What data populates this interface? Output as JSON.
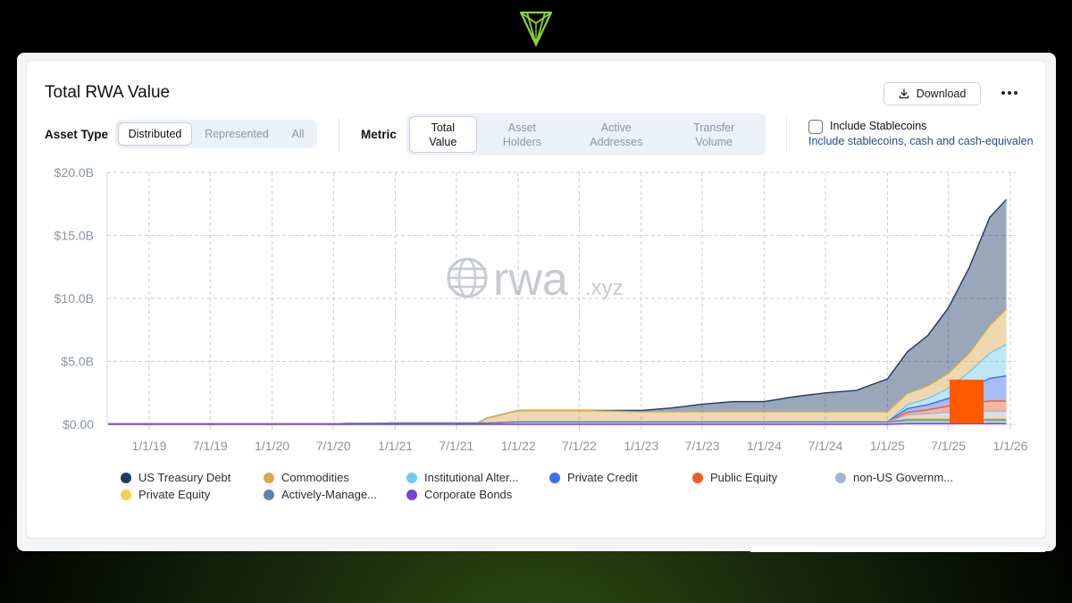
{
  "header": {
    "title": "Total RWA Value",
    "download_label": "Download",
    "more_icon": "more-horizontal-icon",
    "download_icon": "download-icon"
  },
  "asset_type": {
    "label": "Asset Type",
    "options": [
      "Distributed",
      "Represented",
      "All"
    ],
    "selected": "Distributed"
  },
  "metric": {
    "label": "Metric",
    "options": [
      {
        "line1": "Total",
        "line2": "Value"
      },
      {
        "line1": "Asset",
        "line2": "Holders"
      },
      {
        "line1": "Active",
        "line2": "Addresses"
      },
      {
        "line1": "Transfer",
        "line2": "Volume"
      }
    ],
    "selected": "Total Value"
  },
  "stablecoins": {
    "label": "Include Stablecoins",
    "description": "Include stablecoins, cash and cash-equivalen",
    "checked": false
  },
  "watermark": {
    "main": "rwa",
    "suffix": ".xyz"
  },
  "colors": {
    "accent_green": "#8fd62e",
    "background": "#000000",
    "highlight_orange": "#ff5a00"
  },
  "chart_data": {
    "type": "area",
    "stacked": true,
    "ylim": [
      0,
      20
    ],
    "y_unit": "B USD",
    "y_ticks": [
      "$0.00",
      "$5.0B",
      "$10.0B",
      "$15.0B",
      "$20.0B"
    ],
    "x_ticks": [
      "1/1/19",
      "7/1/19",
      "1/1/20",
      "7/1/20",
      "1/1/21",
      "7/1/21",
      "1/1/22",
      "7/1/22",
      "1/1/23",
      "7/1/23",
      "1/1/24",
      "7/1/24",
      "1/1/25",
      "7/1/25",
      "1/1/26"
    ],
    "grid": true,
    "legend_position": "bottom",
    "x": [
      "2018-09-01",
      "2019-01-01",
      "2019-07-01",
      "2020-01-01",
      "2020-07-01",
      "2021-01-01",
      "2021-07-01",
      "2021-09-01",
      "2021-10-01",
      "2022-01-01",
      "2022-07-01",
      "2023-01-01",
      "2023-04-01",
      "2023-07-01",
      "2023-10-01",
      "2024-01-01",
      "2024-04-01",
      "2024-07-01",
      "2024-10-01",
      "2025-01-01",
      "2025-03-01",
      "2025-05-01",
      "2025-07-01",
      "2025-09-01",
      "2025-11-01",
      "2025-12-20"
    ],
    "series": [
      {
        "name": "US Treasury Debt",
        "color": "#1f3a64",
        "values": [
          0,
          0,
          0,
          0,
          0,
          0,
          0,
          0,
          0,
          0,
          0,
          0.1,
          0.3,
          0.6,
          0.8,
          0.8,
          1.2,
          1.5,
          1.7,
          2.6,
          3.3,
          4.0,
          5.2,
          6.8,
          8.6,
          8.7
        ]
      },
      {
        "name": "Commodities",
        "color": "#d9a94d",
        "values": [
          0,
          0,
          0,
          0,
          0,
          0,
          0,
          0,
          0.4,
          0.9,
          0.9,
          0.8,
          0.8,
          0.8,
          0.8,
          0.8,
          0.8,
          0.8,
          0.8,
          0.8,
          0.9,
          1.0,
          1.2,
          1.5,
          2.2,
          2.8
        ]
      },
      {
        "name": "Institutional Alternative Funds",
        "color": "#6ecaea",
        "values": [
          0,
          0,
          0,
          0,
          0,
          0,
          0,
          0,
          0,
          0,
          0,
          0,
          0,
          0,
          0,
          0,
          0,
          0,
          0,
          0,
          0.3,
          0.5,
          0.8,
          1.3,
          2.0,
          2.5
        ]
      },
      {
        "name": "Private Credit",
        "color": "#3b6df0",
        "values": [
          0,
          0,
          0,
          0,
          0,
          0,
          0,
          0,
          0,
          0,
          0,
          0,
          0,
          0,
          0,
          0,
          0,
          0,
          0,
          0,
          0.3,
          0.4,
          0.6,
          1.2,
          1.8,
          2.0
        ]
      },
      {
        "name": "Public Equity",
        "color": "#f05a28",
        "values": [
          0,
          0,
          0,
          0,
          0,
          0,
          0,
          0,
          0,
          0,
          0,
          0,
          0,
          0,
          0,
          0,
          0,
          0,
          0,
          0,
          0.2,
          0.3,
          0.5,
          0.6,
          0.8,
          0.8
        ]
      },
      {
        "name": "non-US Government Debt",
        "color": "#a7b4cf",
        "values": [
          0,
          0,
          0,
          0,
          0,
          0,
          0,
          0,
          0,
          0,
          0,
          0,
          0,
          0,
          0,
          0,
          0,
          0,
          0,
          0,
          0.3,
          0.4,
          0.5,
          0.6,
          0.6,
          0.6
        ]
      },
      {
        "name": "Private Equity",
        "color": "#f2d24a",
        "values": [
          0,
          0,
          0,
          0,
          0,
          0,
          0,
          0,
          0,
          0,
          0,
          0,
          0,
          0,
          0,
          0,
          0,
          0,
          0,
          0,
          0.1,
          0.1,
          0.1,
          0.1,
          0.1,
          0.1
        ]
      },
      {
        "name": "Actively-Managed Strategies",
        "color": "#5b82b5",
        "values": [
          0.05,
          0.05,
          0.05,
          0.05,
          0.05,
          0.1,
          0.1,
          0.1,
          0.1,
          0.2,
          0.2,
          0.2,
          0.2,
          0.2,
          0.2,
          0.2,
          0.2,
          0.2,
          0.2,
          0.2,
          0.3,
          0.3,
          0.3,
          0.3,
          0.3,
          0.3
        ]
      },
      {
        "name": "Corporate Bonds",
        "color": "#7b3fd6",
        "values": [
          0,
          0,
          0,
          0,
          0,
          0,
          0,
          0,
          0,
          0,
          0,
          0,
          0,
          0,
          0,
          0,
          0,
          0,
          0,
          0,
          0.05,
          0.05,
          0.05,
          0.05,
          0.05,
          0.05
        ]
      }
    ],
    "legend_labels": [
      "US Treasury Debt",
      "Commodities",
      "Institutional Alter...",
      "Private Credit",
      "Public Equity",
      "non-US Governm...",
      "Private Equity",
      "Actively-Manage...",
      "Corporate Bonds"
    ]
  }
}
